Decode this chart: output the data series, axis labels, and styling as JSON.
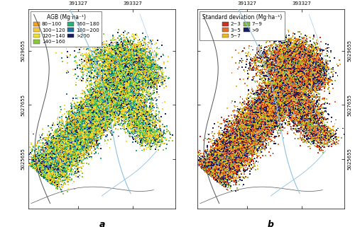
{
  "fig_width": 5.0,
  "fig_height": 3.21,
  "dpi": 100,
  "xlim": [
    389500,
    394900
  ],
  "ylim": [
    5023800,
    5031200
  ],
  "xtick_vals": [
    391327,
    393327
  ],
  "ytick_vals": [
    5025655,
    5027655,
    5029655
  ],
  "xtick_labels": [
    "391327",
    "393327"
  ],
  "ytick_labels": [
    "5025655",
    "5027655",
    "5029655"
  ],
  "panel_a": {
    "title": "a",
    "legend_title": "AGB (Mg·ha⁻¹)",
    "legend_items": [
      {
        "label": "80~100",
        "color": "#F5A020"
      },
      {
        "label": "100~120",
        "color": "#F5C840"
      },
      {
        "label": "120~140",
        "color": "#EEE030"
      },
      {
        "label": "140~160",
        "color": "#8CC83A"
      },
      {
        "label": "160~180",
        "color": "#2AAF78"
      },
      {
        "label": "180~200",
        "color": "#2270A0"
      },
      {
        "label": ">200",
        "color": "#182060"
      }
    ],
    "weights": [
      0.07,
      0.11,
      0.22,
      0.22,
      0.17,
      0.1,
      0.11
    ]
  },
  "panel_b": {
    "title": "b",
    "legend_title": "Standard deviation (Mg·ha⁻¹)",
    "legend_items": [
      {
        "label": "2~3",
        "color": "#CC3020"
      },
      {
        "label": "3~5",
        "color": "#E07030"
      },
      {
        "label": "5~7",
        "color": "#F0B820"
      },
      {
        "label": "7~9",
        "color": "#80B840"
      },
      {
        "label": ">9",
        "color": "#182060"
      }
    ],
    "weights": [
      0.13,
      0.22,
      0.23,
      0.14,
      0.28
    ]
  },
  "tick_fontsize": 5.0,
  "legend_fontsize": 5.0,
  "legend_title_fontsize": 5.5,
  "panel_label_fontsize": 9,
  "contour_color": "#555555",
  "river_color": "#90C0E0"
}
